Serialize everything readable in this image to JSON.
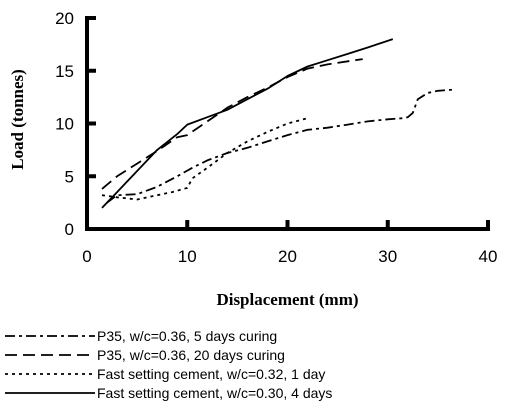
{
  "chart_data": {
    "type": "line",
    "title": "",
    "xlabel": "Displacement (mm)",
    "ylabel": "Load (tonnes)",
    "xlim": [
      0,
      40
    ],
    "ylim": [
      0,
      20
    ],
    "xticks": [
      "0",
      "10",
      "20",
      "30",
      "40"
    ],
    "yticks": [
      "0",
      "5",
      "10",
      "15",
      "20"
    ],
    "grid": false,
    "legend_position": "bottom",
    "series": [
      {
        "name": "P35, w/c=0.36, 5 days curing",
        "dash": "dashdot",
        "x": [
          2,
          3,
          5,
          7,
          9,
          10.5,
          12,
          14,
          16,
          18,
          20,
          22,
          24,
          26,
          28,
          30,
          31.5,
          32,
          32.5,
          33,
          34,
          35,
          36.5
        ],
        "y": [
          2.5,
          3.2,
          3.3,
          4,
          5,
          5.8,
          6.5,
          7.2,
          7.7,
          8.3,
          8.9,
          9.4,
          9.6,
          9.9,
          10.2,
          10.4,
          10.5,
          10.6,
          11,
          12.3,
          12.9,
          13.1,
          13.2
        ]
      },
      {
        "name": "P35, w/c=0.36, 20 days curing",
        "dash": "longdash",
        "x": [
          1.5,
          3,
          5,
          7,
          9,
          10,
          12,
          14,
          16,
          18,
          20,
          22,
          24,
          26,
          27.5
        ],
        "y": [
          3.8,
          5,
          6.2,
          7.4,
          8.7,
          8.9,
          10.2,
          11.5,
          12.5,
          13.4,
          14.4,
          15.2,
          15.6,
          15.9,
          16.1
        ]
      },
      {
        "name": "Fast setting cement, w/c=0.32, 1 day",
        "dash": "dotted",
        "x": [
          1.5,
          3,
          5,
          7,
          8.5,
          10,
          10.5,
          12,
          14,
          16,
          18,
          20,
          22
        ],
        "y": [
          3.2,
          3,
          2.8,
          3.2,
          3.5,
          3.9,
          4.8,
          5.8,
          7.2,
          8.3,
          9.2,
          10,
          10.5
        ]
      },
      {
        "name": "Fast setting cement, w/c=0.30, 4 days",
        "dash": "solid",
        "x": [
          1.5,
          3,
          5,
          7,
          9,
          10,
          12,
          14,
          16,
          18,
          20,
          22,
          24,
          26,
          28,
          30.5
        ],
        "y": [
          2,
          3.5,
          5.5,
          7.5,
          9,
          9.9,
          10.6,
          11.3,
          12.3,
          13.3,
          14.5,
          15.4,
          16,
          16.6,
          17.2,
          18
        ]
      }
    ]
  }
}
